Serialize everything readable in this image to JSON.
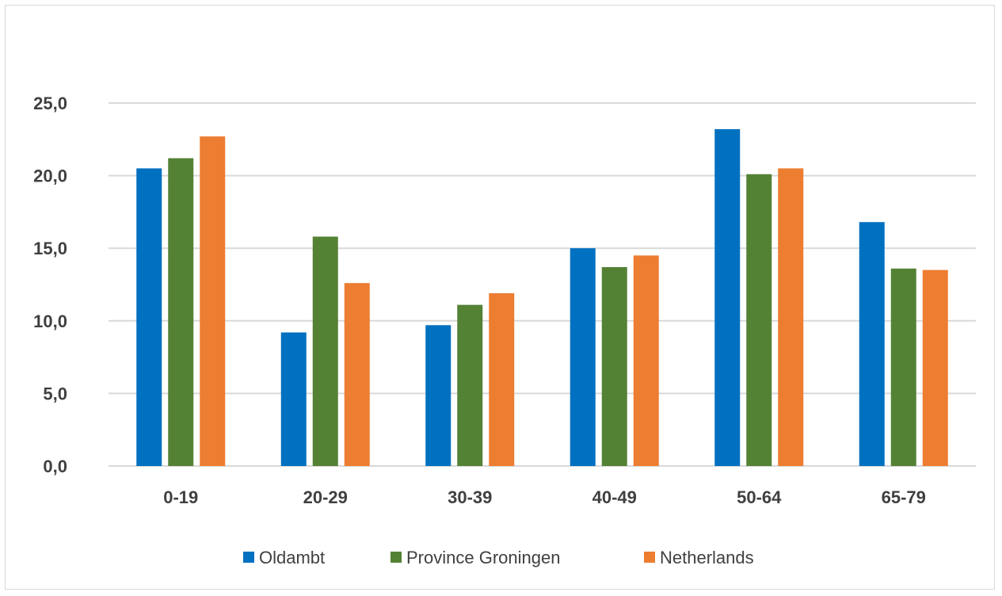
{
  "chart_data": {
    "type": "bar",
    "title": "",
    "xlabel": "",
    "ylabel": "",
    "categories": [
      "0-19",
      "20-29",
      "30-39",
      "40-49",
      "50-64",
      "65-79"
    ],
    "series": [
      {
        "name": "Oldambt",
        "color": "#0070c0",
        "values": [
          20.5,
          9.2,
          9.7,
          15.0,
          23.2,
          16.8
        ]
      },
      {
        "name": "Province Groningen",
        "color": "#548235",
        "values": [
          21.2,
          15.8,
          11.1,
          13.7,
          20.1,
          13.6
        ]
      },
      {
        "name": "Netherlands",
        "color": "#ed7d31",
        "values": [
          22.7,
          12.6,
          11.9,
          14.5,
          20.5,
          13.5
        ]
      }
    ],
    "ylim": [
      0,
      25
    ],
    "yticks": [
      "0,0",
      "5,0",
      "10,0",
      "15,0",
      "20,0",
      "25,0"
    ],
    "grid": true,
    "legend_position": "bottom"
  }
}
